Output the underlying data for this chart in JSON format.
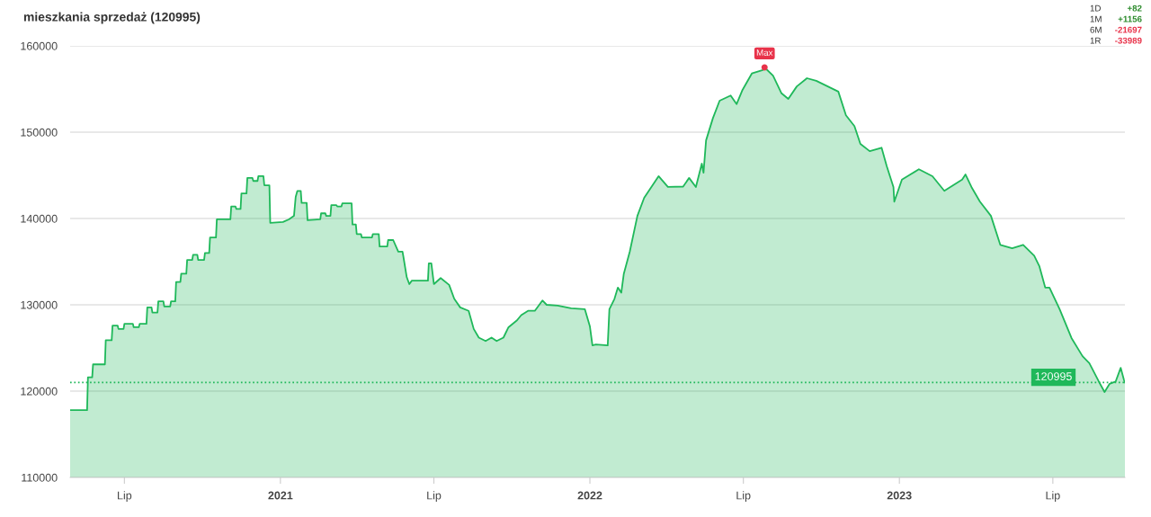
{
  "chart_data": {
    "type": "area",
    "title": "mieszkania sprzedaż (120995)",
    "x": [
      "2020-04-28",
      "2020-05-18",
      "2020-05-19",
      "2020-05-24",
      "2020-05-25",
      "2020-06-08",
      "2020-06-09",
      "2020-06-16",
      "2020-06-17",
      "2020-06-23",
      "2020-06-24",
      "2020-06-30",
      "2020-07-01",
      "2020-07-11",
      "2020-07-12",
      "2020-07-18",
      "2020-07-19",
      "2020-07-27",
      "2020-07-28",
      "2020-08-02",
      "2020-08-03",
      "2020-08-09",
      "2020-08-10",
      "2020-08-16",
      "2020-08-17",
      "2020-08-24",
      "2020-08-25",
      "2020-08-30",
      "2020-08-31",
      "2020-09-05",
      "2020-09-06",
      "2020-09-12",
      "2020-09-13",
      "2020-09-19",
      "2020-09-20",
      "2020-09-25",
      "2020-09-26",
      "2020-10-03",
      "2020-10-04",
      "2020-10-09",
      "2020-10-10",
      "2020-10-17",
      "2020-10-18",
      "2020-11-03",
      "2020-11-04",
      "2020-11-09",
      "2020-11-10",
      "2020-11-15",
      "2020-11-16",
      "2020-11-22",
      "2020-11-23",
      "2020-11-29",
      "2020-11-30",
      "2020-12-05",
      "2020-12-06",
      "2020-12-12",
      "2020-12-13",
      "2020-12-19",
      "2020-12-20",
      "2021-01-04",
      "2021-01-11",
      "2021-01-17",
      "2021-01-19",
      "2021-01-21",
      "2021-01-25",
      "2021-01-26",
      "2021-02-01",
      "2021-02-02",
      "2021-02-17",
      "2021-02-18",
      "2021-02-23",
      "2021-02-24",
      "2021-03-01",
      "2021-03-02",
      "2021-03-08",
      "2021-03-09",
      "2021-03-14",
      "2021-03-15",
      "2021-03-26",
      "2021-03-27",
      "2021-03-31",
      "2021-04-01",
      "2021-04-06",
      "2021-04-07",
      "2021-04-19",
      "2021-04-20",
      "2021-04-27",
      "2021-04-28",
      "2021-05-07",
      "2021-05-08",
      "2021-05-14",
      "2021-05-20",
      "2021-05-25",
      "2021-05-26",
      "2021-05-30",
      "2021-06-02",
      "2021-06-05",
      "2021-06-24",
      "2021-06-25",
      "2021-06-28",
      "2021-07-01",
      "2021-07-09",
      "2021-07-19",
      "2021-07-25",
      "2021-08-01",
      "2021-08-11",
      "2021-08-17",
      "2021-08-23",
      "2021-08-31",
      "2021-09-07",
      "2021-09-13",
      "2021-09-21",
      "2021-09-27",
      "2021-10-07",
      "2021-10-12",
      "2021-10-20",
      "2021-10-28",
      "2021-11-06",
      "2021-11-11",
      "2021-11-24",
      "2021-12-10",
      "2021-12-26",
      "2022-01-01",
      "2022-01-04",
      "2022-01-08",
      "2022-01-22",
      "2022-01-24",
      "2022-01-30",
      "2022-02-03",
      "2022-02-07",
      "2022-02-10",
      "2022-02-17",
      "2022-02-26",
      "2022-03-06",
      "2022-03-23",
      "2022-04-03",
      "2022-04-21",
      "2022-04-28",
      "2022-05-06",
      "2022-05-13",
      "2022-05-15",
      "2022-05-18",
      "2022-05-26",
      "2022-06-03",
      "2022-06-16",
      "2022-06-23",
      "2022-06-30",
      "2022-07-11",
      "2022-07-24",
      "2022-07-26",
      "2022-08-05",
      "2022-08-15",
      "2022-08-23",
      "2022-09-02",
      "2022-09-14",
      "2022-09-25",
      "2022-10-21",
      "2022-10-30",
      "2022-11-09",
      "2022-11-16",
      "2022-11-27",
      "2022-12-11",
      "2022-12-17",
      "2022-12-25",
      "2022-12-26",
      "2023-01-04",
      "2023-01-14",
      "2023-01-24",
      "2023-02-09",
      "2023-02-23",
      "2023-03-16",
      "2023-03-20",
      "2023-03-27",
      "2023-04-06",
      "2023-04-19",
      "2023-04-30",
      "2023-05-14",
      "2023-05-27",
      "2023-06-09",
      "2023-06-15",
      "2023-06-22",
      "2023-06-27",
      "2023-07-09",
      "2023-07-23",
      "2023-08-05",
      "2023-08-13",
      "2023-08-24",
      "2023-08-31",
      "2023-09-06",
      "2023-09-13",
      "2023-09-19",
      "2023-09-23",
      "2023-09-24"
    ],
    "series": [
      {
        "color": "#1fb85a",
        "values": [
          117800,
          117800,
          121600,
          121600,
          123100,
          123100,
          125900,
          125900,
          127600,
          127600,
          127200,
          127200,
          127800,
          127800,
          127400,
          127400,
          127800,
          127800,
          129700,
          129700,
          129100,
          129100,
          130400,
          130400,
          129800,
          129800,
          130400,
          130400,
          132650,
          132650,
          133600,
          133600,
          135200,
          135200,
          135800,
          135800,
          135200,
          135200,
          136000,
          136000,
          137800,
          137800,
          139900,
          139900,
          141400,
          141400,
          141100,
          141100,
          142900,
          142900,
          144700,
          144700,
          144350,
          144350,
          144900,
          144900,
          143850,
          143850,
          139500,
          139600,
          139900,
          140300,
          142500,
          143200,
          143200,
          141800,
          141800,
          139800,
          139900,
          140600,
          140600,
          140300,
          140300,
          141550,
          141550,
          141400,
          141400,
          141750,
          141750,
          139300,
          139300,
          138200,
          138200,
          137800,
          137800,
          138200,
          138200,
          136750,
          136750,
          137500,
          137500,
          136150,
          136150,
          135600,
          133200,
          132400,
          132800,
          132800,
          134800,
          134800,
          132400,
          133100,
          132300,
          130700,
          129700,
          129300,
          127200,
          126200,
          125800,
          126200,
          125800,
          126200,
          127400,
          128200,
          128800,
          129300,
          129300,
          130500,
          130000,
          129900,
          129600,
          129500,
          127500,
          125300,
          125400,
          125300,
          129500,
          130700,
          132000,
          131400,
          133600,
          136150,
          140300,
          142400,
          144900,
          143650,
          143700,
          144700,
          143650,
          146350,
          145300,
          149050,
          151600,
          153650,
          154250,
          153250,
          154900,
          156800,
          157200,
          157500,
          156550,
          154500,
          153850,
          155300,
          156250,
          155950,
          154700,
          151950,
          150700,
          148650,
          147800,
          148200,
          146100,
          143650,
          141950,
          144500,
          145100,
          145700,
          144900,
          143200,
          144500,
          145100,
          143650,
          141950,
          140300,
          136950,
          136550,
          136950,
          135700,
          134500,
          132000,
          132000,
          129500,
          126150,
          124050,
          123250,
          121150,
          119900,
          120850,
          121100,
          122700,
          121250,
          120995
        ]
      }
    ],
    "xlim": [
      "2020-04-28",
      "2023-09-24"
    ],
    "xticks": [
      {
        "value": "2020-07-01",
        "label": "Lip"
      },
      {
        "value": "2021-01-01",
        "label": "2021"
      },
      {
        "value": "2021-07-01",
        "label": "Lip"
      },
      {
        "value": "2022-01-01",
        "label": "2022"
      },
      {
        "value": "2022-07-01",
        "label": "Lip"
      },
      {
        "value": "2023-01-01",
        "label": "2023"
      },
      {
        "value": "2023-07-01",
        "label": "Lip"
      }
    ],
    "ylim": [
      110000,
      160000
    ],
    "yticks": [
      110000,
      120000,
      130000,
      140000,
      150000,
      160000
    ],
    "grid": "y",
    "marker": "none",
    "line_style": "solid",
    "ref_lines": [
      {
        "axis": "y",
        "value": 120995,
        "label": "120995",
        "color": "#1fb85a",
        "line_style": "dotted"
      }
    ],
    "annotations": [
      {
        "text": "Max",
        "x": "2022-07-26",
        "y": 157500
      },
      "1D +82",
      "1M +1156",
      "6M -21697",
      "1R -33989"
    ]
  }
}
